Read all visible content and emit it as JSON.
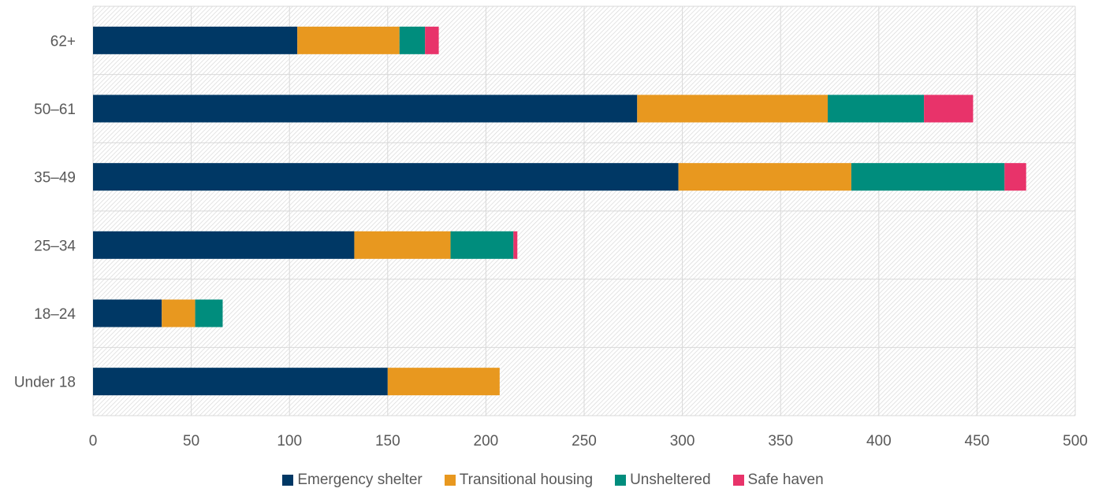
{
  "chart_data": {
    "type": "bar",
    "orientation": "horizontal",
    "stacked": true,
    "categories": [
      "62+",
      "50–61",
      "35–49",
      "25–34",
      "18–24",
      "Under 18"
    ],
    "series": [
      {
        "name": "Emergency shelter",
        "color": "#003865",
        "values": [
          104,
          277,
          298,
          133,
          35,
          150
        ]
      },
      {
        "name": "Transitional housing",
        "color": "#E8981F",
        "values": [
          52,
          97,
          88,
          49,
          17,
          57
        ]
      },
      {
        "name": "Unsheltered",
        "color": "#008D7D",
        "values": [
          13,
          49,
          78,
          32,
          14,
          0
        ]
      },
      {
        "name": "Safe haven",
        "color": "#E8336A",
        "values": [
          7,
          25,
          11,
          2,
          0,
          0
        ]
      }
    ],
    "xlim": [
      0,
      500
    ],
    "xticks": [
      0,
      50,
      100,
      150,
      200,
      250,
      300,
      350,
      400,
      450,
      500
    ],
    "title": "",
    "xlabel": "",
    "ylabel": "",
    "grid": true,
    "legend_position": "bottom"
  }
}
